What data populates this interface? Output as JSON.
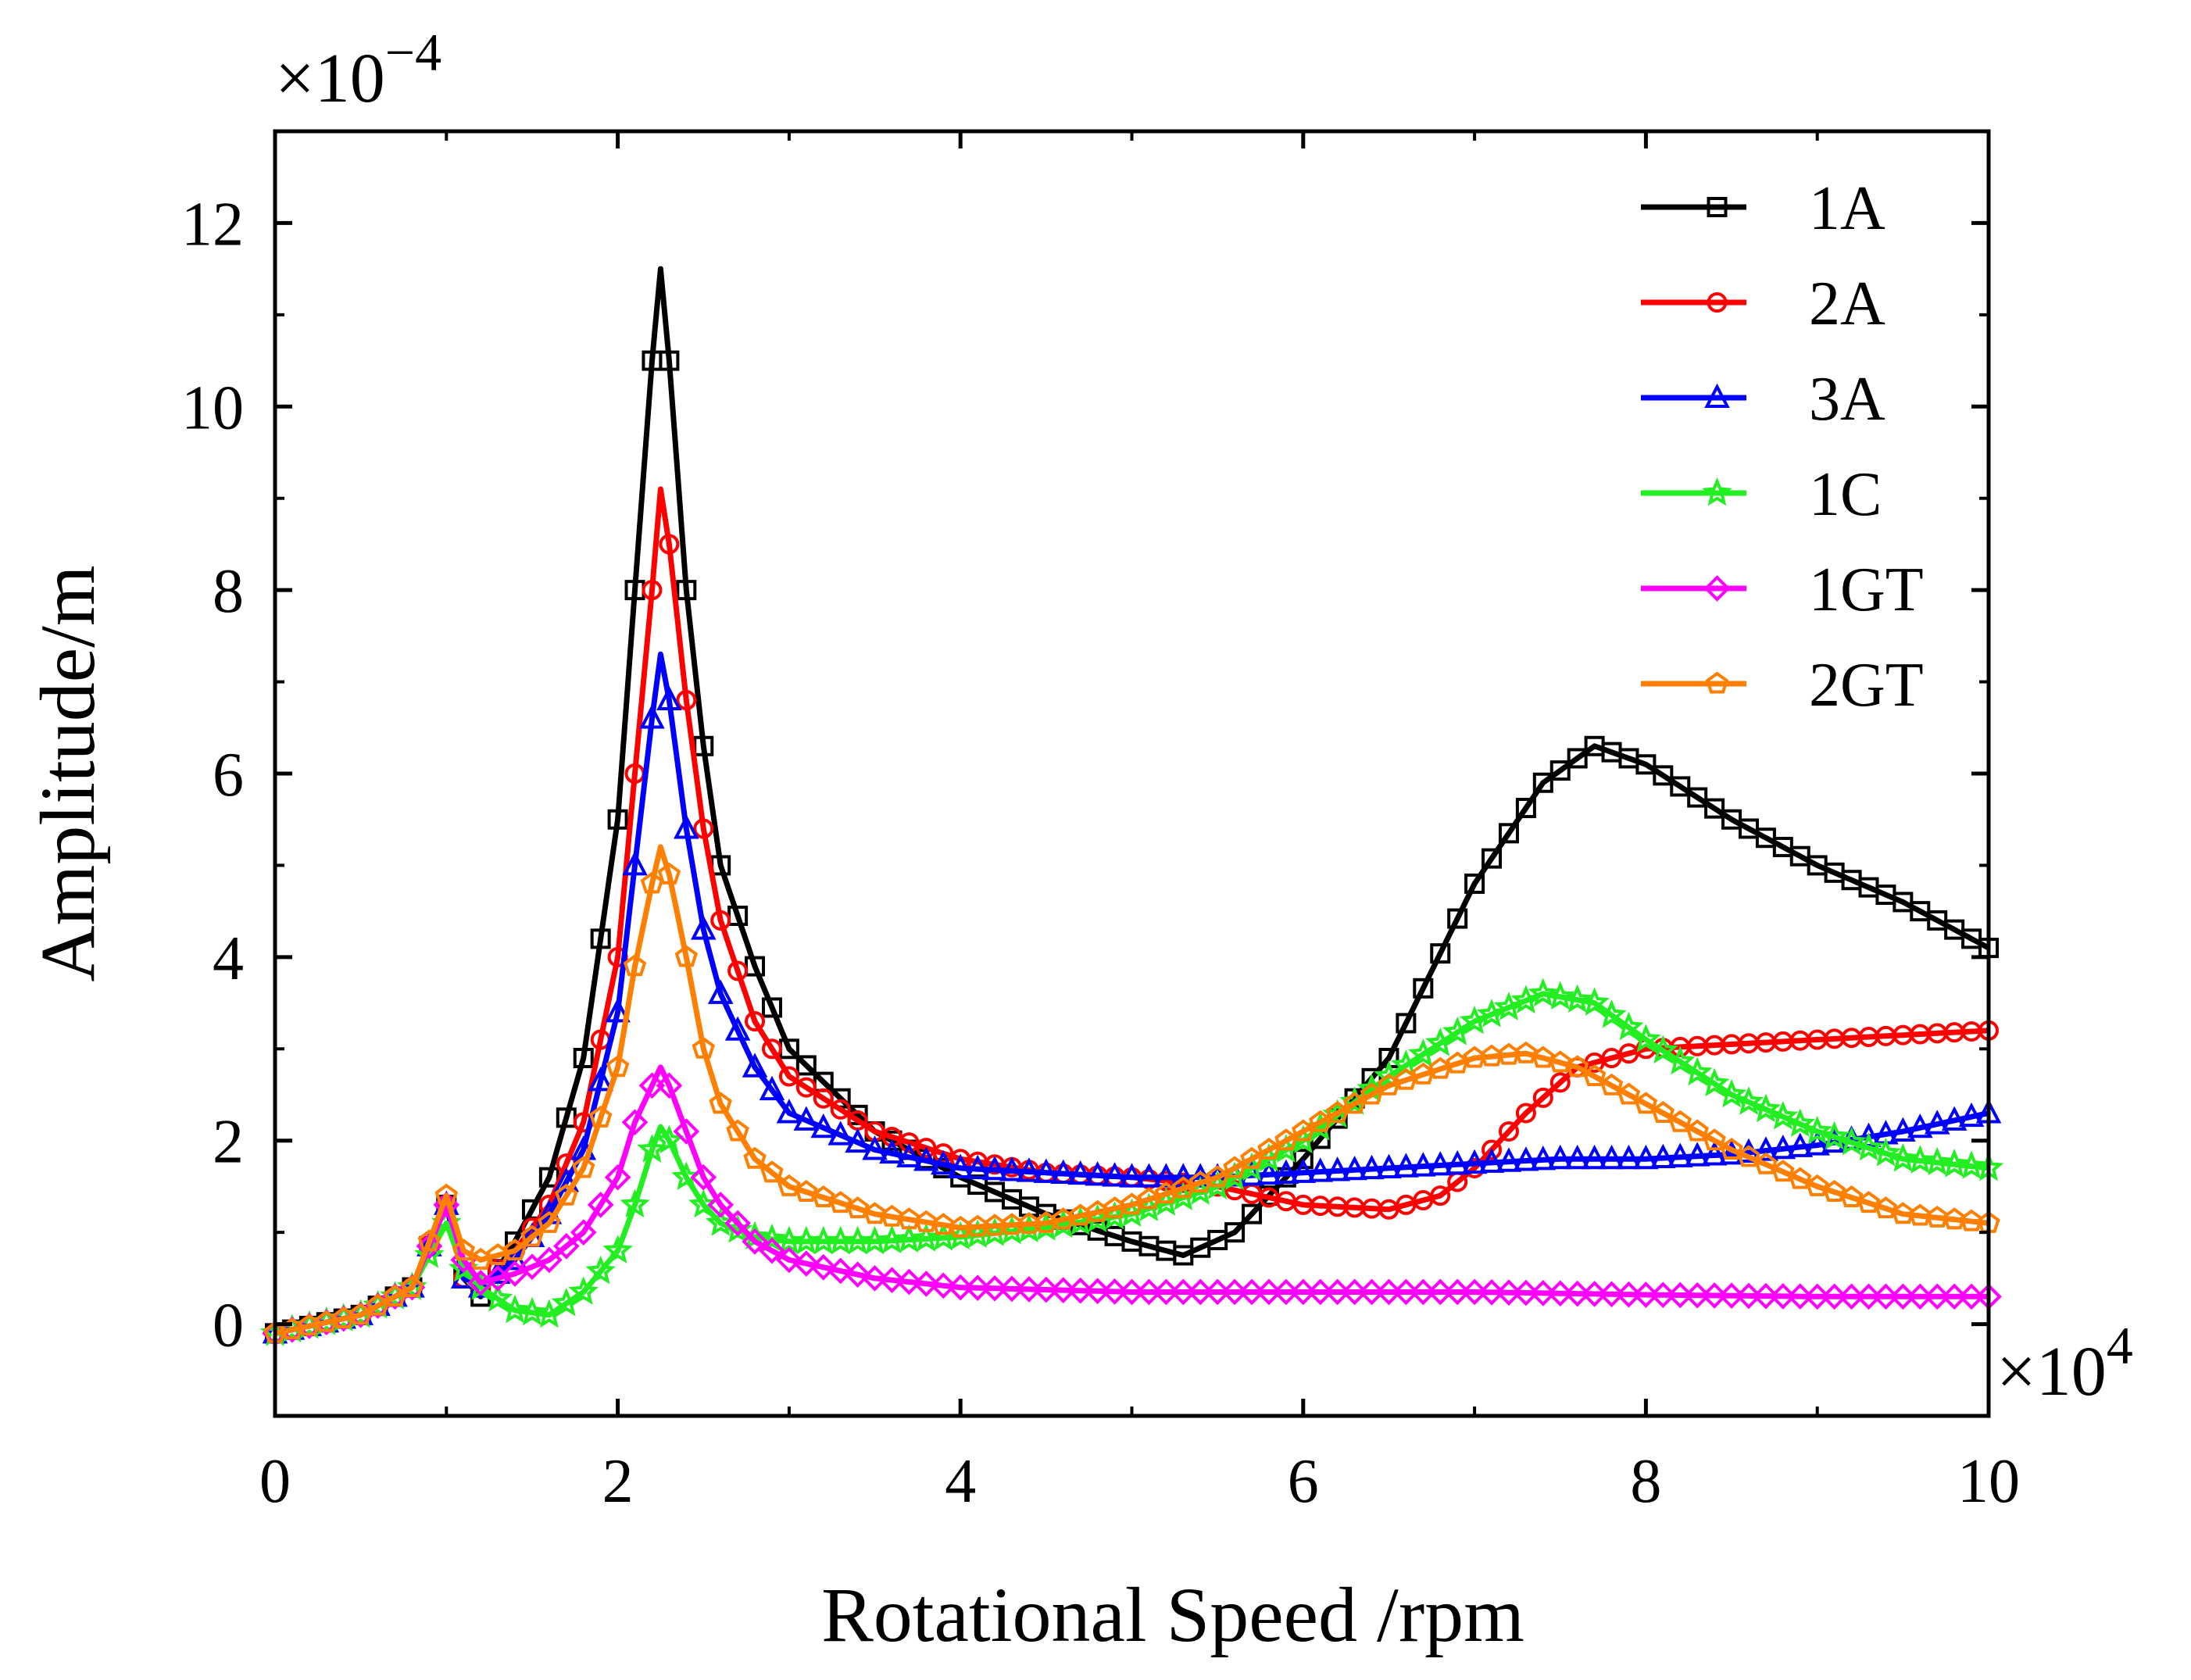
{
  "chart_data": {
    "type": "line",
    "xlabel": "Rotational Speed /rpm",
    "ylabel": "Amplitude/m",
    "x_multiplier_label": {
      "base": "×10",
      "exp": "4"
    },
    "y_multiplier_label": {
      "base": "×10",
      "exp": "−4"
    },
    "xlim": [
      0,
      10
    ],
    "ylim": [
      -1,
      13
    ],
    "x_ticks": [
      0,
      2,
      4,
      6,
      8,
      10
    ],
    "x_tick_labels": [
      "0",
      "2",
      "4",
      "6",
      "8",
      "10"
    ],
    "y_ticks": [
      0,
      2,
      4,
      6,
      8,
      10,
      12
    ],
    "y_tick_labels": [
      "0",
      "2",
      "4",
      "6",
      "8",
      "10",
      "12"
    ],
    "grid": false,
    "legend_position": "top-right",
    "series": [
      {
        "name": "1A",
        "color": "#000000",
        "marker": "square",
        "x": [
          0,
          0.5,
          0.8,
          1.0,
          1.1,
          1.2,
          1.4,
          1.6,
          1.8,
          2.0,
          2.1,
          2.2,
          2.25,
          2.3,
          2.4,
          2.5,
          2.6,
          2.8,
          3.0,
          3.5,
          4.0,
          4.5,
          5.0,
          5.3,
          5.6,
          6.0,
          6.5,
          7.0,
          7.4,
          7.7,
          8.0,
          8.5,
          9.0,
          9.5,
          10.0
        ],
        "y": [
          -0.1,
          0.1,
          0.4,
          1.3,
          0.5,
          0.3,
          0.9,
          1.6,
          2.9,
          5.5,
          8.0,
          10.5,
          11.5,
          10.5,
          8.0,
          6.3,
          5.0,
          3.9,
          3.0,
          2.1,
          1.6,
          1.2,
          0.9,
          0.75,
          1.0,
          1.8,
          2.9,
          4.8,
          5.9,
          6.3,
          6.1,
          5.5,
          5.0,
          4.6,
          4.1
        ]
      },
      {
        "name": "2A",
        "color": "#ff0000",
        "marker": "circle",
        "x": [
          0,
          0.5,
          0.8,
          1.0,
          1.1,
          1.2,
          1.4,
          1.6,
          1.8,
          2.0,
          2.1,
          2.2,
          2.25,
          2.3,
          2.4,
          2.5,
          2.6,
          2.8,
          3.0,
          3.5,
          4.0,
          4.5,
          5.0,
          5.5,
          6.0,
          6.5,
          6.8,
          7.0,
          7.3,
          7.6,
          8.0,
          8.5,
          9.0,
          9.5,
          10.0
        ],
        "y": [
          -0.1,
          0.1,
          0.4,
          1.3,
          0.5,
          0.4,
          0.8,
          1.3,
          2.2,
          4.0,
          6.0,
          8.0,
          9.1,
          8.5,
          6.8,
          5.4,
          4.4,
          3.3,
          2.7,
          2.1,
          1.8,
          1.65,
          1.6,
          1.5,
          1.3,
          1.25,
          1.4,
          1.7,
          2.3,
          2.8,
          3.0,
          3.05,
          3.1,
          3.15,
          3.2
        ]
      },
      {
        "name": "3A",
        "color": "#0000ff",
        "marker": "triangle",
        "x": [
          0,
          0.5,
          0.8,
          1.0,
          1.1,
          1.2,
          1.4,
          1.6,
          1.8,
          2.0,
          2.1,
          2.2,
          2.25,
          2.3,
          2.4,
          2.5,
          2.6,
          2.8,
          3.0,
          3.5,
          4.0,
          4.5,
          5.0,
          5.5,
          6.0,
          6.5,
          7.0,
          7.5,
          8.0,
          8.5,
          9.0,
          9.5,
          10.0
        ],
        "y": [
          -0.1,
          0.1,
          0.4,
          1.3,
          0.5,
          0.4,
          0.7,
          1.2,
          1.9,
          3.4,
          5.0,
          6.6,
          7.3,
          6.8,
          5.4,
          4.3,
          3.6,
          2.8,
          2.3,
          1.9,
          1.7,
          1.65,
          1.6,
          1.6,
          1.65,
          1.7,
          1.75,
          1.8,
          1.8,
          1.85,
          1.95,
          2.1,
          2.3
        ]
      },
      {
        "name": "1C",
        "color": "#22ee22",
        "marker": "star",
        "x": [
          0,
          0.5,
          0.8,
          1.0,
          1.1,
          1.2,
          1.4,
          1.6,
          1.8,
          2.0,
          2.1,
          2.2,
          2.25,
          2.3,
          2.4,
          2.5,
          2.6,
          2.8,
          3.0,
          3.5,
          4.0,
          4.5,
          5.0,
          5.5,
          6.0,
          6.5,
          7.0,
          7.4,
          7.7,
          8.0,
          8.5,
          9.0,
          9.5,
          10.0
        ],
        "y": [
          -0.1,
          0.1,
          0.4,
          1.1,
          0.6,
          0.4,
          0.15,
          0.1,
          0.35,
          0.8,
          1.3,
          1.9,
          2.15,
          2.0,
          1.6,
          1.3,
          1.1,
          0.95,
          0.9,
          0.9,
          0.95,
          1.05,
          1.2,
          1.5,
          2.0,
          2.7,
          3.3,
          3.6,
          3.5,
          3.1,
          2.5,
          2.1,
          1.8,
          1.7
        ]
      },
      {
        "name": "1GT",
        "color": "#ff00ff",
        "marker": "diamond",
        "x": [
          0,
          0.5,
          0.8,
          1.0,
          1.1,
          1.2,
          1.4,
          1.6,
          1.8,
          2.0,
          2.1,
          2.2,
          2.25,
          2.3,
          2.4,
          2.5,
          2.6,
          2.8,
          3.0,
          3.5,
          4.0,
          5.0,
          6.0,
          7.0,
          8.0,
          9.0,
          10.0
        ],
        "y": [
          -0.1,
          0.1,
          0.4,
          1.3,
          0.7,
          0.45,
          0.55,
          0.7,
          1.0,
          1.6,
          2.2,
          2.6,
          2.8,
          2.6,
          2.1,
          1.6,
          1.3,
          0.9,
          0.7,
          0.5,
          0.4,
          0.35,
          0.35,
          0.35,
          0.32,
          0.3,
          0.3
        ]
      },
      {
        "name": "2GT",
        "color": "#ff7f00",
        "marker": "pentagon",
        "x": [
          0,
          0.5,
          0.8,
          1.0,
          1.1,
          1.2,
          1.4,
          1.6,
          1.8,
          2.0,
          2.1,
          2.2,
          2.25,
          2.3,
          2.4,
          2.5,
          2.6,
          2.8,
          3.0,
          3.5,
          4.0,
          4.5,
          5.0,
          5.5,
          6.0,
          6.5,
          7.0,
          7.3,
          7.6,
          8.0,
          8.5,
          9.0,
          9.5,
          10.0
        ],
        "y": [
          -0.1,
          0.1,
          0.4,
          1.4,
          0.8,
          0.7,
          0.8,
          1.1,
          1.7,
          2.8,
          3.9,
          4.8,
          5.2,
          4.9,
          4.0,
          3.0,
          2.4,
          1.8,
          1.5,
          1.2,
          1.05,
          1.1,
          1.3,
          1.6,
          2.1,
          2.6,
          2.9,
          2.95,
          2.8,
          2.4,
          1.9,
          1.5,
          1.2,
          1.1
        ]
      }
    ]
  }
}
